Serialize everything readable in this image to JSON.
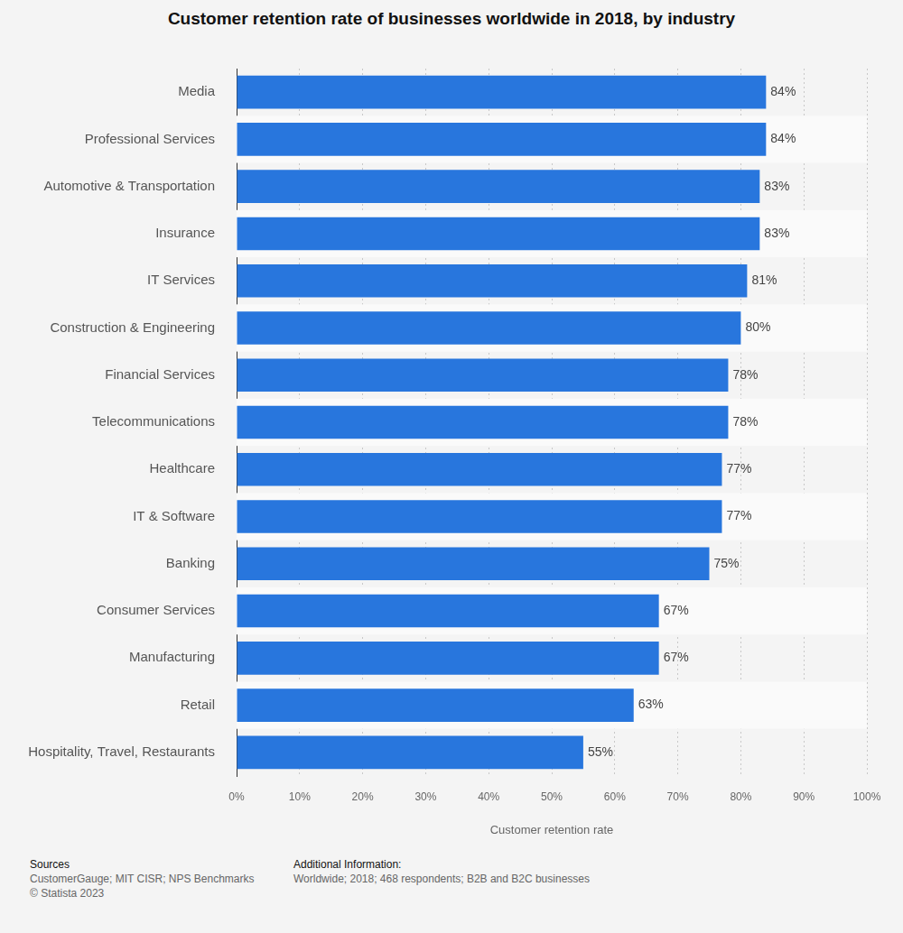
{
  "chart_data": {
    "type": "bar",
    "title": "Customer retention rate of businesses worldwide in 2018, by industry",
    "orientation": "horizontal",
    "categories": [
      "Media",
      "Professional Services",
      "Automotive & Transportation",
      "Insurance",
      "IT Services",
      "Construction & Engineering",
      "Financial Services",
      "Telecommunications",
      "Healthcare",
      "IT & Software",
      "Banking",
      "Consumer Services",
      "Manufacturing",
      "Retail",
      "Hospitality, Travel, Restaurants"
    ],
    "values": [
      84,
      84,
      83,
      83,
      81,
      80,
      78,
      78,
      77,
      77,
      75,
      67,
      67,
      63,
      55
    ],
    "value_labels": [
      "84%",
      "84%",
      "83%",
      "83%",
      "81%",
      "80%",
      "78%",
      "78%",
      "77%",
      "77%",
      "75%",
      "67%",
      "67%",
      "63%",
      "55%"
    ],
    "data_labels": true,
    "color": "#2876dd",
    "xlabel": "Customer retention rate",
    "xlim": [
      0,
      100
    ],
    "xticks": [
      {
        "value": 0,
        "label": "0%"
      },
      {
        "value": 10,
        "label": "10%"
      },
      {
        "value": 20,
        "label": "20%"
      },
      {
        "value": 30,
        "label": "30%"
      },
      {
        "value": 40,
        "label": "40%"
      },
      {
        "value": 50,
        "label": "50%"
      },
      {
        "value": 60,
        "label": "60%"
      },
      {
        "value": 70,
        "label": "70%"
      },
      {
        "value": 80,
        "label": "80%"
      },
      {
        "value": 90,
        "label": "90%"
      },
      {
        "value": 100,
        "label": "100%"
      }
    ],
    "grid": true
  },
  "sources": {
    "heading": "Sources",
    "text": "CustomerGauge; MIT CISR; NPS Benchmarks",
    "copyright": "© Statista 2023"
  },
  "additional_information": {
    "heading": "Additional Information:",
    "text": "Worldwide; 2018; 468 respondents; B2B and B2C businesses"
  }
}
